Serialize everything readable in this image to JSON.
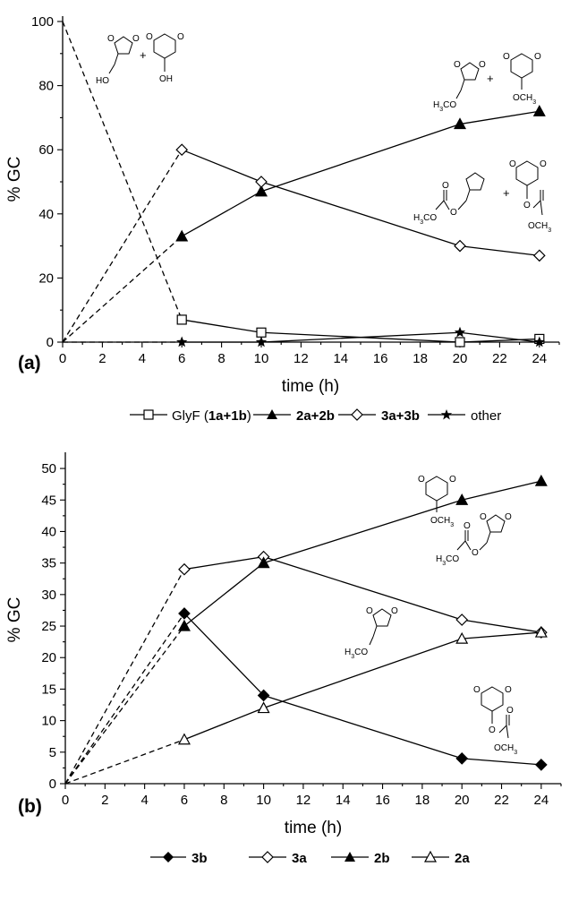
{
  "chart_data": [
    {
      "type": "line",
      "panel_label": "(a)",
      "xlabel": "time (h)",
      "ylabel": "% GC",
      "xlim": [
        0,
        25
      ],
      "ylim": [
        0,
        100
      ],
      "xticks": [
        0,
        2,
        4,
        6,
        8,
        10,
        12,
        14,
        16,
        18,
        20,
        22,
        24
      ],
      "yticks": [
        0,
        20,
        40,
        60,
        80,
        100
      ],
      "grid": false,
      "legend_position": "bottom",
      "legend": {
        "glyf_prefix": "GlyF (",
        "glyf_bold": "1a+1b",
        "glyf_suffix": ")",
        "s2": "2a+2b",
        "s3": "3a+3b",
        "s4": "other"
      },
      "series": [
        {
          "key": "glyf",
          "marker": "square-open",
          "color": "#000000",
          "x": [
            0,
            6,
            10,
            20,
            24
          ],
          "y": [
            100,
            7,
            3,
            0,
            1
          ],
          "dashed_segments": [
            0
          ]
        },
        {
          "key": "s2",
          "marker": "triangle-filled",
          "color": "#000000",
          "x": [
            0,
            6,
            10,
            20,
            24
          ],
          "y": [
            0,
            33,
            47,
            68,
            72
          ],
          "dashed_segments": [
            0
          ]
        },
        {
          "key": "s3",
          "marker": "diamond-open",
          "color": "#000000",
          "x": [
            0,
            6,
            10,
            20,
            24
          ],
          "y": [
            0,
            60,
            50,
            30,
            27
          ],
          "dashed_segments": [
            0
          ]
        },
        {
          "key": "s4",
          "marker": "star",
          "color": "#000000",
          "x": [
            0,
            6,
            10,
            20,
            24
          ],
          "y": [
            0,
            0,
            0,
            3,
            0
          ],
          "dashed_segments": [
            0
          ]
        }
      ],
      "structure_labels": {
        "plus": "+",
        "ho": "HO",
        "oh": "OH",
        "h3co": "H3CO",
        "och3": "OCH3",
        "o": "O"
      }
    },
    {
      "type": "line",
      "panel_label": "(b)",
      "xlabel": "time (h)",
      "ylabel": "% GC",
      "xlim": [
        0,
        25
      ],
      "ylim": [
        0,
        52
      ],
      "xticks": [
        0,
        2,
        4,
        6,
        8,
        10,
        12,
        14,
        16,
        18,
        20,
        22,
        24
      ],
      "yticks": [
        0,
        5,
        10,
        15,
        20,
        25,
        30,
        35,
        40,
        45,
        50
      ],
      "grid": false,
      "legend_position": "bottom",
      "legend": {
        "s1": "3b",
        "s2": "3a",
        "s3": "2b",
        "s4": "2a"
      },
      "series": [
        {
          "key": "s1",
          "marker": "diamond-filled",
          "color": "#000000",
          "x": [
            0,
            6,
            10,
            20,
            24
          ],
          "y": [
            0,
            27,
            14,
            4,
            3
          ],
          "dashed_segments": [
            0
          ]
        },
        {
          "key": "s2",
          "marker": "diamond-open",
          "color": "#000000",
          "x": [
            0,
            6,
            10,
            20,
            24
          ],
          "y": [
            0,
            34,
            36,
            26,
            24
          ],
          "dashed_segments": [
            0
          ]
        },
        {
          "key": "s3",
          "marker": "triangle-filled",
          "color": "#000000",
          "x": [
            0,
            6,
            10,
            20,
            24
          ],
          "y": [
            0,
            25,
            35,
            45,
            48
          ],
          "dashed_segments": [
            0
          ]
        },
        {
          "key": "s4",
          "marker": "triangle-open",
          "color": "#000000",
          "x": [
            0,
            6,
            10,
            20,
            24
          ],
          "y": [
            0,
            7,
            12,
            23,
            24
          ],
          "dashed_segments": [
            0
          ]
        }
      ],
      "structure_labels": {
        "h3co": "H3CO",
        "och3": "OCH3",
        "o": "O"
      }
    }
  ]
}
